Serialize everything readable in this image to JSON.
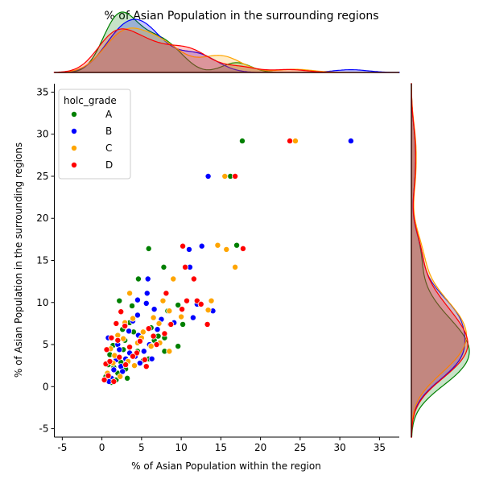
{
  "chart_data": {
    "type": "scatter",
    "title": "% of Asian Population in the surrounding regions",
    "xlabel": "% of Asian Population within the region",
    "ylabel": "% of Asian Population in the surrounding regions",
    "xlim": [
      -6,
      37.5
    ],
    "ylim": [
      -6,
      36
    ],
    "x_ticks": [
      -5,
      0,
      5,
      10,
      15,
      20,
      25,
      30,
      35
    ],
    "y_ticks": [
      -5,
      0,
      5,
      10,
      15,
      20,
      25,
      30,
      35
    ],
    "grid": false,
    "legend": {
      "title": "holc_grade",
      "placement": "top-left"
    },
    "marginals": {
      "top": "kde of x by holc_grade",
      "right": "kde of y by holc_grade"
    },
    "series": [
      {
        "name": "A",
        "color": "#008000",
        "points": [
          [
            17.7,
            29.2
          ],
          [
            16.2,
            25.0
          ],
          [
            5.9,
            16.4
          ],
          [
            17.0,
            16.8
          ],
          [
            7.8,
            14.2
          ],
          [
            4.6,
            12.8
          ],
          [
            2.2,
            10.2
          ],
          [
            9.6,
            9.7
          ],
          [
            10.2,
            7.4
          ],
          [
            7.9,
            5.8
          ],
          [
            7.9,
            4.2
          ],
          [
            9.6,
            4.8
          ],
          [
            5.9,
            3.3
          ],
          [
            3.5,
            7.6
          ],
          [
            2.9,
            5.5
          ],
          [
            3.0,
            2.1
          ],
          [
            1.8,
            0.8
          ],
          [
            0.5,
            1.2
          ],
          [
            1.5,
            2.3
          ],
          [
            2.7,
            4.4
          ],
          [
            4.0,
            6.5
          ],
          [
            6.2,
            7.0
          ],
          [
            8.3,
            9.0
          ],
          [
            2.0,
            1.6
          ],
          [
            1.0,
            3.8
          ],
          [
            3.8,
            9.6
          ],
          [
            1.2,
            0.5
          ],
          [
            0.8,
            2.6
          ],
          [
            6.6,
            5.5
          ],
          [
            5.2,
            3.1
          ],
          [
            3.2,
            1.0
          ],
          [
            4.5,
            4.2
          ],
          [
            2.4,
            2.9
          ],
          [
            7.1,
            6.0
          ],
          [
            1.4,
            4.9
          ],
          [
            0.6,
            0.9
          ],
          [
            2.6,
            6.8
          ]
        ]
      },
      {
        "name": "B",
        "color": "#0000ff",
        "points": [
          [
            31.4,
            29.2
          ],
          [
            13.4,
            25.0
          ],
          [
            12.6,
            16.7
          ],
          [
            11.0,
            16.3
          ],
          [
            11.1,
            14.2
          ],
          [
            5.8,
            12.8
          ],
          [
            5.7,
            11.1
          ],
          [
            5.6,
            9.9
          ],
          [
            6.6,
            9.2
          ],
          [
            8.6,
            7.4
          ],
          [
            9.1,
            7.6
          ],
          [
            11.5,
            8.2
          ],
          [
            14.0,
            9.0
          ],
          [
            12.0,
            9.8
          ],
          [
            7.5,
            8.0
          ],
          [
            4.5,
            10.3
          ],
          [
            3.9,
            7.8
          ],
          [
            4.5,
            8.5
          ],
          [
            4.6,
            6.1
          ],
          [
            3.5,
            4.0
          ],
          [
            2.4,
            2.4
          ],
          [
            0.8,
            5.8
          ],
          [
            2.0,
            5.0
          ],
          [
            3.0,
            3.3
          ],
          [
            4.2,
            3.6
          ],
          [
            1.2,
            1.0
          ],
          [
            6.0,
            5.0
          ],
          [
            5.3,
            4.2
          ],
          [
            4.8,
            2.8
          ],
          [
            2.6,
            1.8
          ],
          [
            1.5,
            2.0
          ],
          [
            0.9,
            0.6
          ],
          [
            3.4,
            6.6
          ],
          [
            6.3,
            3.3
          ],
          [
            7.0,
            6.8
          ],
          [
            2.2,
            4.4
          ],
          [
            1.8,
            3.2
          ]
        ]
      },
      {
        "name": "C",
        "color": "#ffa500",
        "points": [
          [
            24.4,
            29.2
          ],
          [
            15.5,
            25.0
          ],
          [
            14.6,
            16.8
          ],
          [
            15.7,
            16.3
          ],
          [
            16.8,
            14.2
          ],
          [
            9.0,
            12.8
          ],
          [
            3.5,
            11.1
          ],
          [
            7.7,
            10.2
          ],
          [
            13.8,
            10.2
          ],
          [
            13.4,
            9.1
          ],
          [
            8.5,
            9.0
          ],
          [
            10.0,
            8.3
          ],
          [
            7.2,
            7.5
          ],
          [
            8.5,
            4.2
          ],
          [
            6.2,
            4.8
          ],
          [
            5.2,
            6.5
          ],
          [
            3.9,
            8.1
          ],
          [
            2.0,
            6.1
          ],
          [
            1.1,
            4.5
          ],
          [
            1.6,
            3.7
          ],
          [
            4.5,
            5.2
          ],
          [
            2.9,
            7.6
          ],
          [
            5.0,
            5.8
          ],
          [
            3.3,
            3.0
          ],
          [
            2.3,
            1.2
          ],
          [
            1.4,
            2.8
          ],
          [
            0.7,
            1.6
          ],
          [
            6.5,
            8.2
          ],
          [
            4.1,
            2.5
          ],
          [
            2.7,
            5.7
          ],
          [
            7.3,
            5.2
          ]
        ]
      },
      {
        "name": "D",
        "color": "#ff0000",
        "points": [
          [
            23.7,
            29.2
          ],
          [
            16.8,
            25.0
          ],
          [
            17.8,
            16.4
          ],
          [
            10.2,
            16.7
          ],
          [
            10.5,
            14.2
          ],
          [
            11.6,
            12.8
          ],
          [
            8.1,
            11.1
          ],
          [
            10.7,
            10.2
          ],
          [
            12.0,
            10.2
          ],
          [
            12.5,
            9.8
          ],
          [
            10.1,
            9.2
          ],
          [
            13.3,
            7.4
          ],
          [
            8.7,
            7.4
          ],
          [
            7.9,
            6.3
          ],
          [
            6.5,
            6.0
          ],
          [
            5.4,
            3.2
          ],
          [
            5.6,
            2.4
          ],
          [
            2.4,
            8.9
          ],
          [
            2.9,
            7.2
          ],
          [
            1.8,
            7.5
          ],
          [
            1.2,
            5.8
          ],
          [
            2.2,
            3.5
          ],
          [
            3.5,
            4.7
          ],
          [
            0.5,
            2.7
          ],
          [
            0.3,
            0.8
          ],
          [
            0.8,
            1.3
          ],
          [
            1.5,
            0.6
          ],
          [
            4.4,
            4.0
          ],
          [
            3.0,
            2.6
          ],
          [
            6.9,
            5.0
          ],
          [
            0.6,
            4.4
          ],
          [
            2.0,
            5.5
          ],
          [
            4.8,
            5.4
          ],
          [
            1.0,
            3.0
          ],
          [
            3.9,
            3.6
          ],
          [
            5.9,
            6.9
          ]
        ]
      }
    ]
  }
}
